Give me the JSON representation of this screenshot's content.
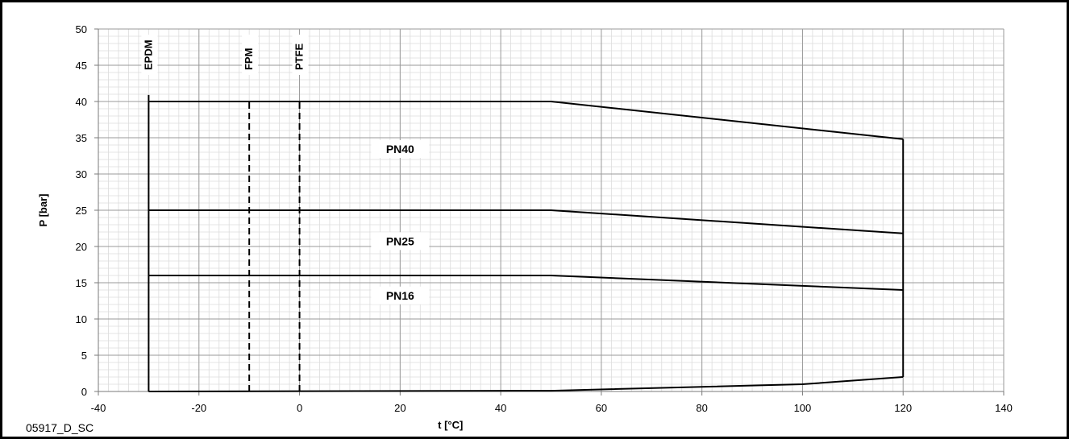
{
  "reference_code": "05917_D_SC",
  "chart_data": {
    "type": "line",
    "xlabel": "t [°C]",
    "ylabel": "P [bar]",
    "xlim": [
      -40,
      140
    ],
    "ylim": [
      0,
      50
    ],
    "x_ticks": [
      -40,
      -20,
      0,
      20,
      40,
      60,
      80,
      100,
      120,
      140
    ],
    "y_ticks": [
      0,
      5,
      10,
      15,
      20,
      25,
      30,
      35,
      40,
      45,
      50
    ],
    "x_minor_step": 2,
    "y_minor_step": 1,
    "grid": true,
    "series": [
      {
        "name": "PN40",
        "x": [
          -30,
          50,
          120
        ],
        "y": [
          40,
          40,
          34.8
        ]
      },
      {
        "name": "PN25",
        "x": [
          -30,
          50,
          120
        ],
        "y": [
          25,
          25,
          21.8
        ]
      },
      {
        "name": "PN16",
        "x": [
          -30,
          50,
          120
        ],
        "y": [
          16,
          16,
          14
        ]
      }
    ],
    "lower_boundary": {
      "x": [
        -30,
        50,
        100,
        120
      ],
      "y": [
        0,
        0.1,
        1,
        2
      ]
    },
    "right_boundary": {
      "x": 120,
      "y": [
        2,
        34.8
      ]
    },
    "zone_labels": [
      {
        "text": "PN40",
        "x": 20,
        "y": 33
      },
      {
        "text": "PN25",
        "x": 20,
        "y": 20.3
      },
      {
        "text": "PN16",
        "x": 20,
        "y": 12.8
      }
    ],
    "material_limits": [
      {
        "name": "EPDM",
        "x": 30,
        "x_value": -30,
        "style": "solid",
        "y_top": 40
      },
      {
        "name": "FPM",
        "x_value": -10,
        "style": "dashed",
        "y_top": 40
      },
      {
        "name": "PTFE",
        "x_value": 0,
        "style": "dashed",
        "y_top": 40
      }
    ]
  }
}
